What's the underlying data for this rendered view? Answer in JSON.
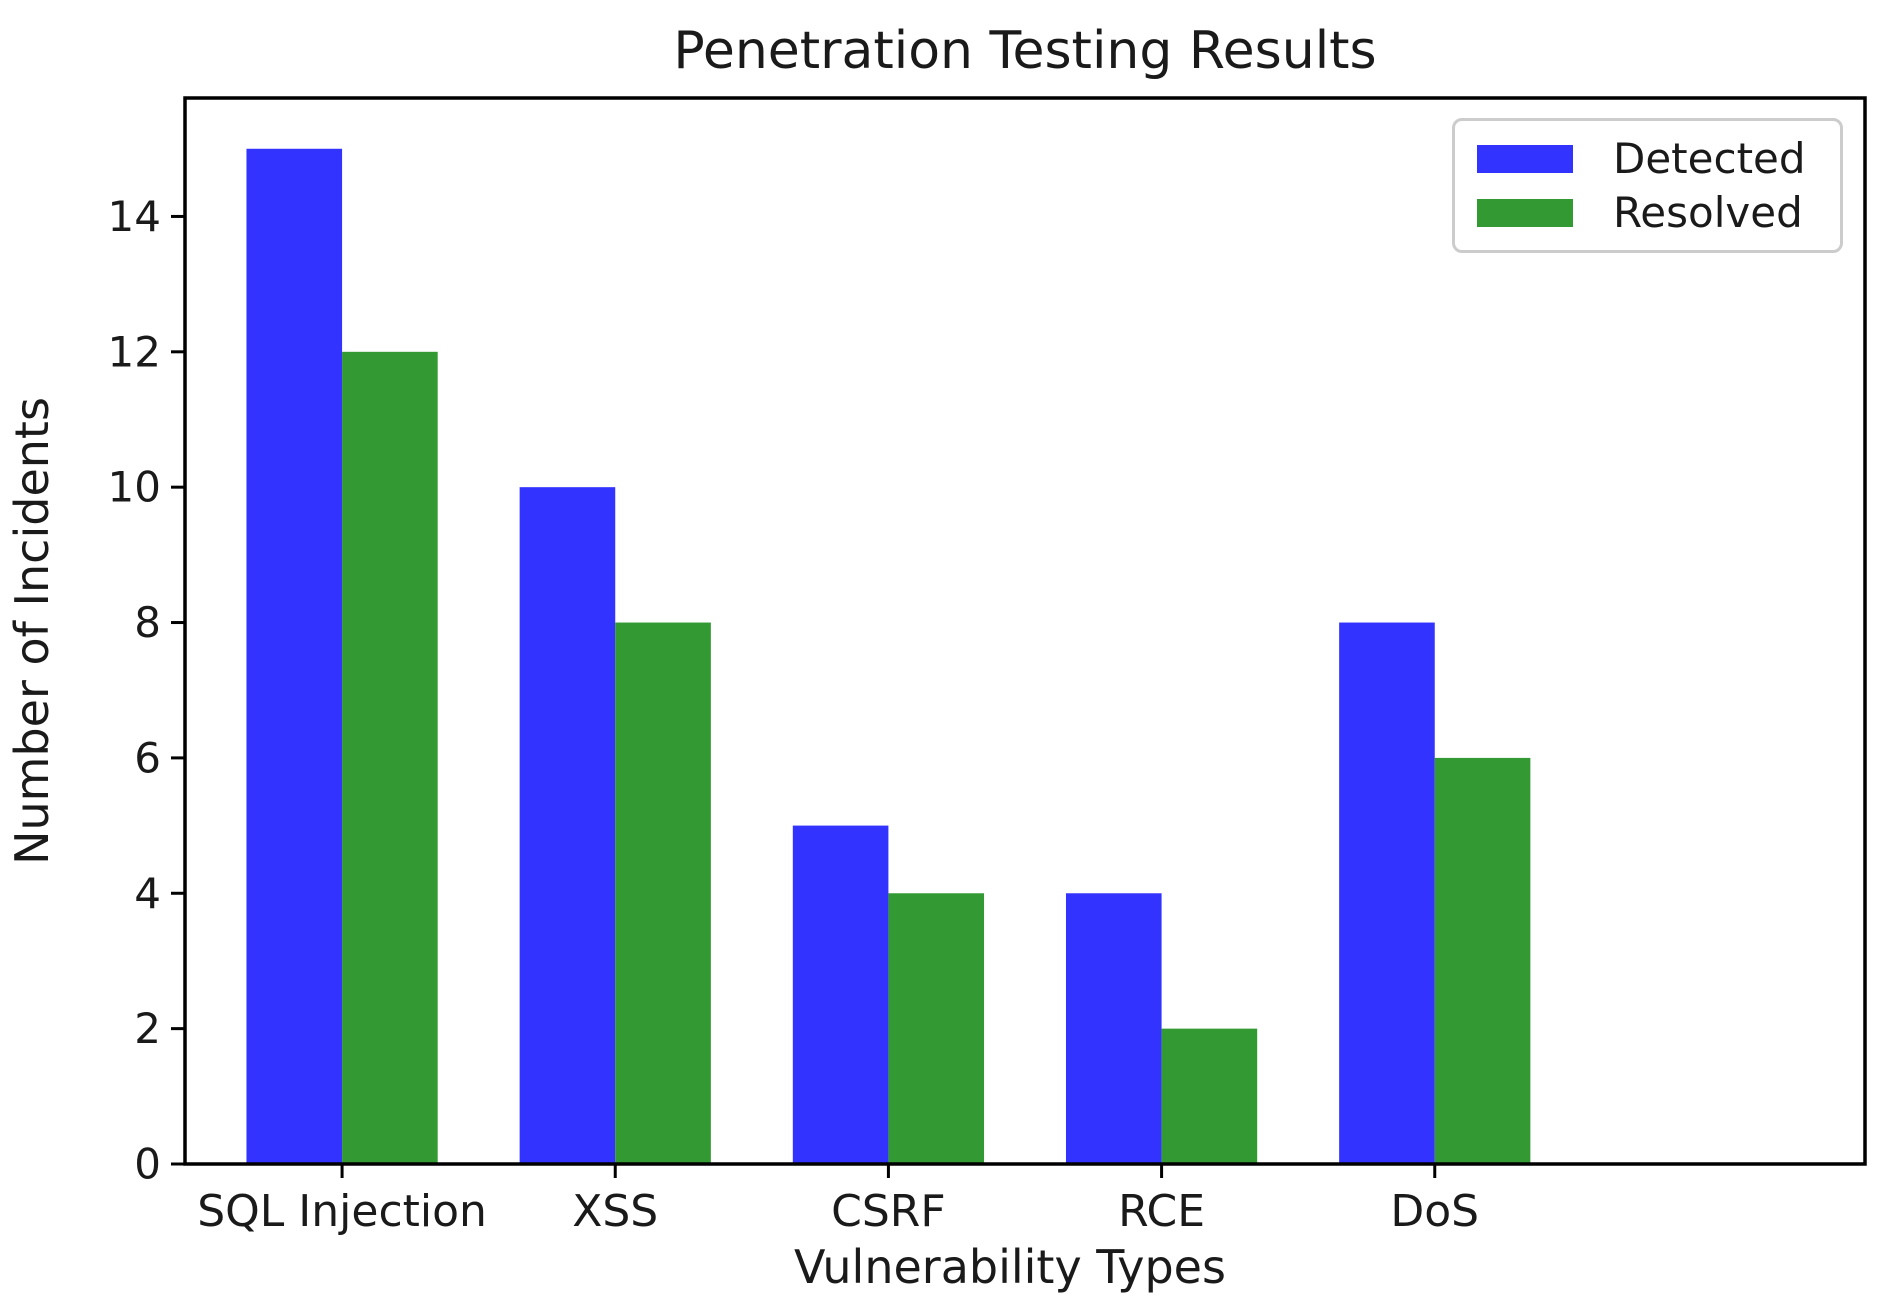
{
  "chart_data": {
    "type": "bar",
    "title": "Penetration Testing Results",
    "xlabel": "Vulnerability Types",
    "ylabel": "Number of Incidents",
    "categories": [
      "SQL Injection",
      "XSS",
      "CSRF",
      "RCE",
      "DoS"
    ],
    "series": [
      {
        "name": "Detected",
        "color": "#3333ff",
        "values": [
          15,
          10,
          5,
          4,
          8
        ]
      },
      {
        "name": "Resolved",
        "color": "#339933",
        "values": [
          12,
          8,
          4,
          2,
          6
        ]
      }
    ],
    "ylim": [
      0,
      15.75
    ],
    "yticks": [
      0,
      2,
      4,
      6,
      8,
      10,
      12,
      14
    ],
    "legend_position": "upper right",
    "grid": false,
    "background_color": "#ffffff",
    "axis_color": "#000000"
  }
}
